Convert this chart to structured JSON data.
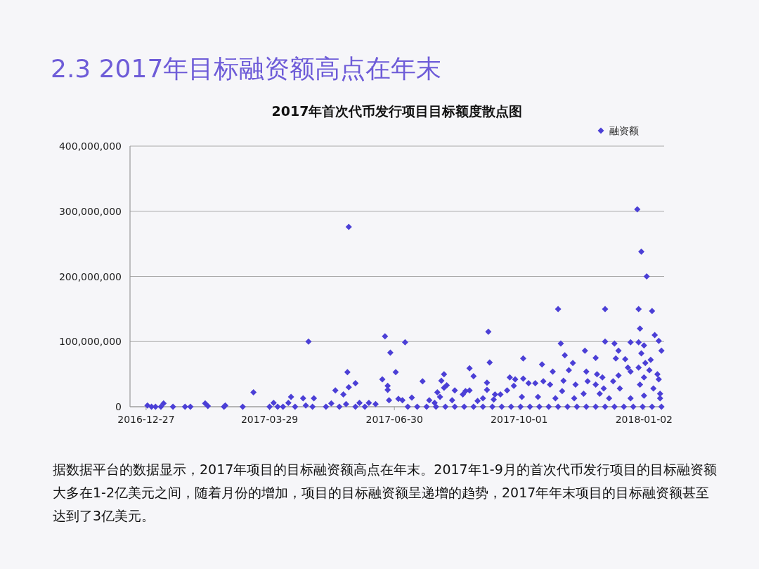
{
  "chart_data": {
    "type": "scatter",
    "title": "2.3 2017年目标融资额高点在年末",
    "subtitle": "2017年首次代币发行项目目标额度散点图",
    "annotations": [
      "据数据平台的数据显示，2017年项目的目标融资额高点在年末。2017年1-9月的首次代币发行项目的目标融资额大多在1-2亿美元之间，随着月份的增加，项目的目标融资额呈递增的趋势，2017年年末项目的目标融资额甚至达到了3亿美元。"
    ],
    "xlim": [
      "2016-12-15",
      "2018-01-17"
    ],
    "xticks": [
      "2016-12-27",
      "2017-03-29",
      "2017-06-30",
      "2017-10-01",
      "2018-01-02"
    ],
    "ylim": [
      0,
      400000000
    ],
    "yticks": [
      0,
      {
        "value": 100000000,
        "label": "100,000,000"
      },
      {
        "value": 200000000,
        "label": "200,000,000"
      },
      {
        "value": 300000000,
        "label": "300,000,000"
      },
      {
        "value": 400000000,
        "label": "400,000,000"
      }
    ],
    "grid": "y",
    "legend": "top right",
    "marker": "diamond",
    "series": [
      {
        "name": "融资额",
        "color": "#4b3fd6",
        "x": [
          "2016-12-28",
          "2016-12-31",
          "2017-01-03",
          "2017-01-07",
          "2017-01-09",
          "2017-01-16",
          "2017-01-25",
          "2017-01-29",
          "2017-02-09",
          "2017-02-11",
          "2017-02-23",
          "2017-02-24",
          "2017-03-09",
          "2017-03-17",
          "2017-03-29",
          "2017-04-01",
          "2017-04-04",
          "2017-04-08",
          "2017-04-12",
          "2017-04-14",
          "2017-04-17",
          "2017-04-23",
          "2017-04-25",
          "2017-04-27",
          "2017-04-30",
          "2017-05-01",
          "2017-05-10",
          "2017-05-14",
          "2017-05-17",
          "2017-05-20",
          "2017-05-23",
          "2017-05-25",
          "2017-05-26",
          "2017-05-27",
          "2017-05-27",
          "2017-06-01",
          "2017-06-01",
          "2017-06-04",
          "2017-06-08",
          "2017-06-11",
          "2017-06-16",
          "2017-06-21",
          "2017-06-23",
          "2017-06-25",
          "2017-06-25",
          "2017-06-26",
          "2017-06-27",
          "2017-07-01",
          "2017-07-03",
          "2017-07-06",
          "2017-07-08",
          "2017-07-13",
          "2017-07-21",
          "2017-07-26",
          "2017-07-30",
          "2017-08-01",
          "2017-08-03",
          "2017-08-04",
          "2017-08-06",
          "2017-08-06",
          "2017-08-08",
          "2017-08-12",
          "2017-08-14",
          "2017-08-20",
          "2017-08-22",
          "2017-08-25",
          "2017-08-25",
          "2017-08-28",
          "2017-08-31",
          "2017-09-04",
          "2017-09-07",
          "2017-09-07",
          "2017-09-08",
          "2017-09-09",
          "2017-09-12",
          "2017-09-13",
          "2017-09-17",
          "2017-09-22",
          "2017-09-24",
          "2017-09-27",
          "2017-09-28",
          "2017-10-03",
          "2017-10-04",
          "2017-10-04",
          "2017-10-08",
          "2017-10-13",
          "2017-10-15",
          "2017-10-18",
          "2017-10-19",
          "2017-10-24",
          "2017-10-26",
          "2017-10-28",
          "2017-10-30",
          "2017-11-01",
          "2017-11-02",
          "2017-11-03",
          "2017-11-04",
          "2017-11-07",
          "2017-11-10",
          "2017-11-11",
          "2017-11-12",
          "2017-11-18",
          "2017-11-19",
          "2017-11-20",
          "2017-11-21",
          "2017-11-27",
          "2017-11-27",
          "2017-11-28",
          "2017-11-30",
          "2017-12-02",
          "2017-12-03",
          "2017-12-04",
          "2017-12-04",
          "2017-12-07",
          "2017-12-10",
          "2017-12-11",
          "2017-12-12",
          "2017-12-14",
          "2017-12-14",
          "2017-12-15",
          "2017-12-19",
          "2017-12-21",
          "2017-12-23",
          "2017-12-23",
          "2017-12-23",
          "2017-12-28",
          "2017-12-29",
          "2017-12-29",
          "2017-12-29",
          "2017-12-30",
          "2017-12-30",
          "2017-12-31",
          "2017-12-31",
          "2018-01-02",
          "2018-01-02",
          "2018-01-02",
          "2018-01-03",
          "2018-01-04",
          "2018-01-06",
          "2018-01-07",
          "2018-01-08",
          "2018-01-09",
          "2018-01-10",
          "2018-01-12",
          "2018-01-13",
          "2018-01-13",
          "2018-01-14",
          "2018-01-14",
          "2018-01-15",
          "2017-07-10",
          "2017-07-17",
          "2017-07-24",
          "2017-07-31",
          "2017-08-07",
          "2017-08-14",
          "2017-08-21",
          "2017-08-28",
          "2017-09-04",
          "2017-09-11",
          "2017-09-18",
          "2017-09-25",
          "2017-10-02",
          "2017-10-09",
          "2017-10-16",
          "2017-10-23",
          "2017-10-30",
          "2017-11-06",
          "2017-11-13",
          "2017-11-20",
          "2017-11-27",
          "2017-12-04",
          "2017-12-11",
          "2017-12-18",
          "2017-12-25",
          "2018-01-01",
          "2018-01-08",
          "2018-01-15"
        ],
        "values": [
          2000000,
          0,
          0,
          0,
          5000000,
          0,
          0,
          0,
          5000000,
          1000000,
          0,
          2000000,
          0,
          22000000,
          0,
          6000000,
          0,
          0,
          6000000,
          15000000,
          0,
          13000000,
          2000000,
          100000000,
          0,
          13000000,
          0,
          5000000,
          25000000,
          0,
          19000000,
          4000000,
          53000000,
          276000000,
          30000000,
          0,
          36000000,
          6000000,
          0,
          6000000,
          4000000,
          42000000,
          108000000,
          32000000,
          26000000,
          10000000,
          83000000,
          53000000,
          12000000,
          10000000,
          99000000,
          14000000,
          39000000,
          10000000,
          6000000,
          22000000,
          15000000,
          40000000,
          50000000,
          29000000,
          33000000,
          10000000,
          25000000,
          19000000,
          24000000,
          59000000,
          25000000,
          47000000,
          9000000,
          13000000,
          37000000,
          26000000,
          115000000,
          68000000,
          11000000,
          19000000,
          19000000,
          25000000,
          45000000,
          32000000,
          42000000,
          15000000,
          74000000,
          43000000,
          36000000,
          36000000,
          15000000,
          65000000,
          39000000,
          34000000,
          54000000,
          13000000,
          150000000,
          97000000,
          24000000,
          40000000,
          79000000,
          56000000,
          67000000,
          13000000,
          34000000,
          20000000,
          86000000,
          54000000,
          39000000,
          75000000,
          34000000,
          50000000,
          20000000,
          45000000,
          28000000,
          150000000,
          100000000,
          13000000,
          39000000,
          97000000,
          74000000,
          86000000,
          48000000,
          28000000,
          73000000,
          60000000,
          99000000,
          54000000,
          13000000,
          303000000,
          150000000,
          99000000,
          60000000,
          34000000,
          120000000,
          238000000,
          82000000,
          94000000,
          45000000,
          17000000,
          67000000,
          200000000,
          56000000,
          72000000,
          147000000,
          28000000,
          110000000,
          50000000,
          101000000,
          42000000,
          20000000,
          13000000,
          86000000,
          0,
          0,
          0,
          0,
          0,
          0,
          0,
          0,
          0,
          0,
          0,
          0,
          0,
          0,
          0,
          0,
          0,
          0,
          0,
          0,
          0,
          0,
          0,
          0,
          0,
          0,
          0,
          0
        ]
      }
    ]
  }
}
